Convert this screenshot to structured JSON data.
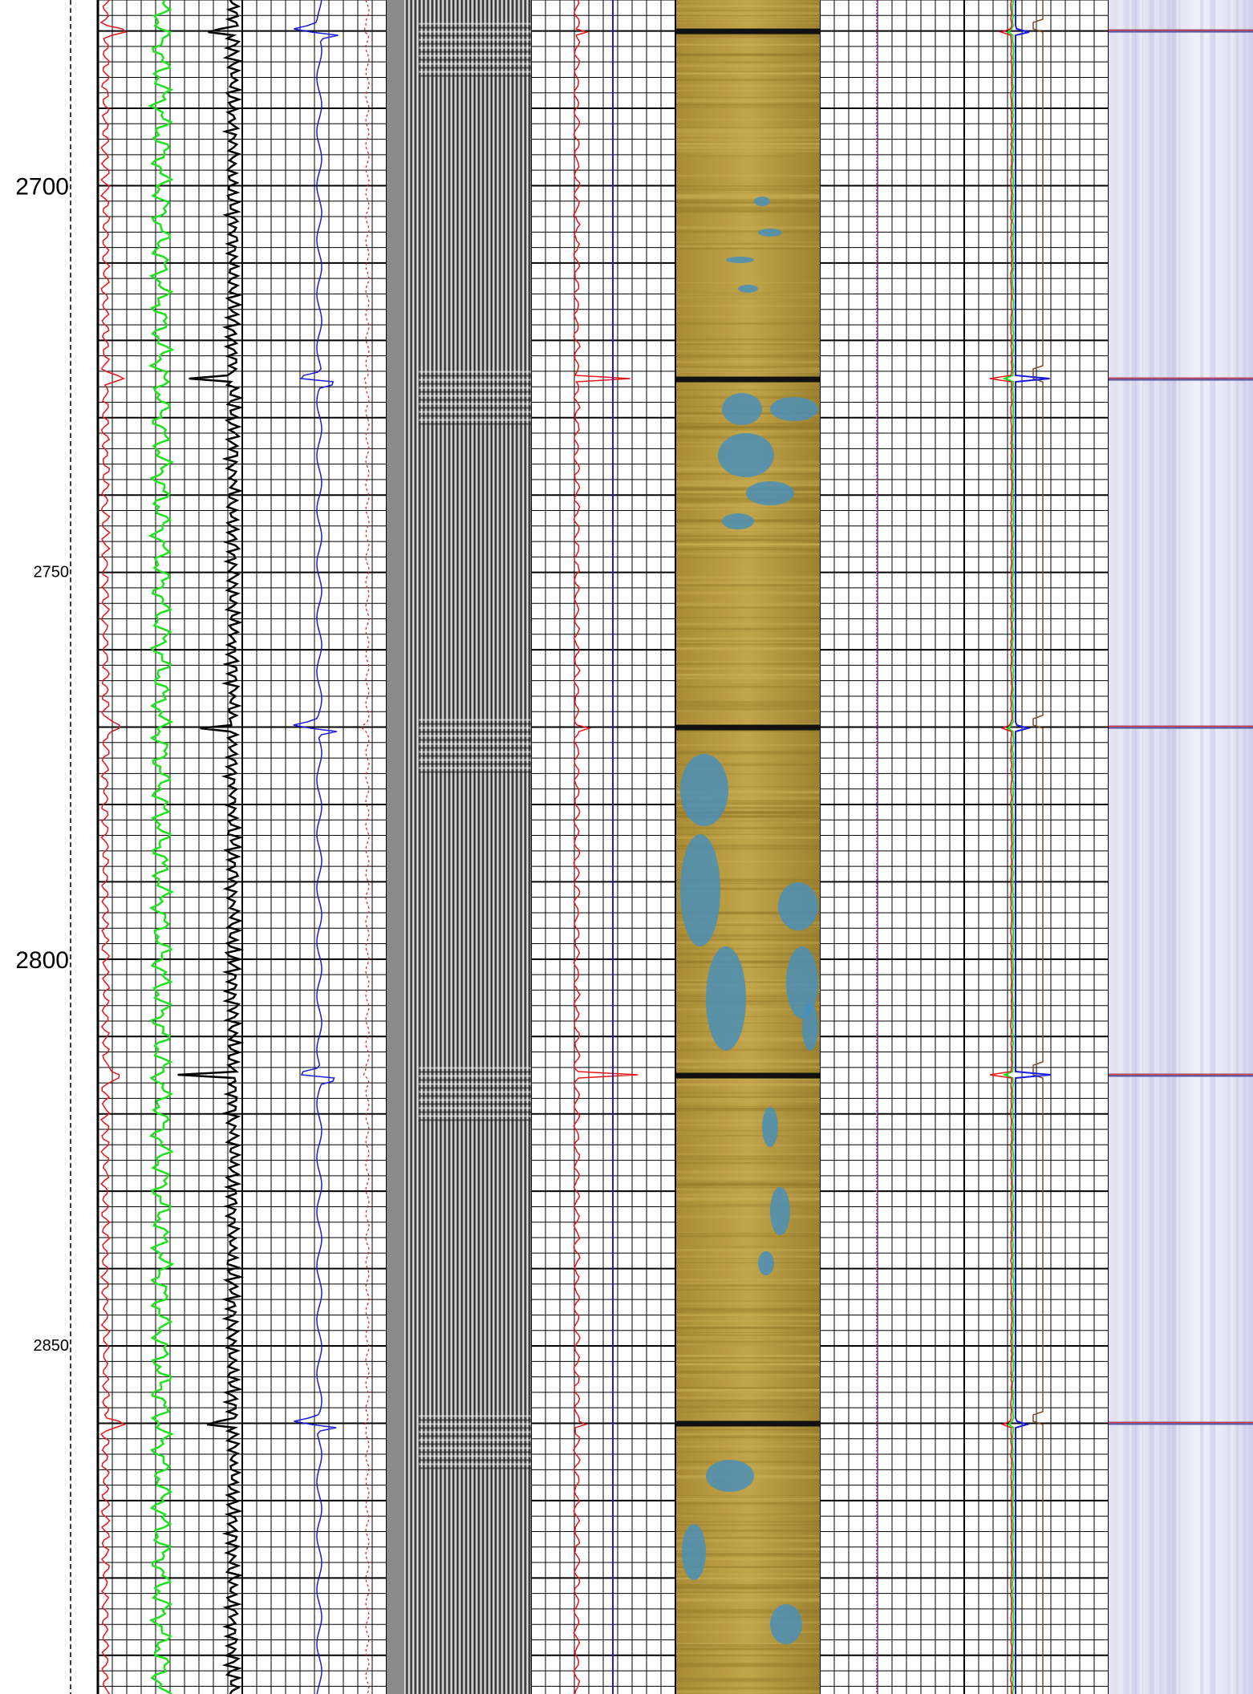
{
  "chart_data": {
    "type": "line",
    "title": "",
    "xlabel": "",
    "ylabel": "",
    "ylim": [
      2676,
      2895
    ],
    "depth_ticks": [
      {
        "value": 2700,
        "label": "2700",
        "size": "large"
      },
      {
        "value": 2750,
        "label": "2750",
        "size": "small"
      },
      {
        "value": 2800,
        "label": "2800",
        "size": "large"
      },
      {
        "value": 2850,
        "label": "2850",
        "size": "small"
      }
    ],
    "major_grid_step": 10,
    "minor_grid_step": 2,
    "grid": true,
    "joint_depths": [
      2680,
      2725,
      2770,
      2815,
      2860
    ],
    "tracks": [
      {
        "name": "track-1",
        "curves": [
          "red",
          "green"
        ]
      },
      {
        "name": "track-2",
        "curves": [
          "black"
        ]
      },
      {
        "name": "track-3",
        "curves": [
          "blue",
          "red-dotted"
        ]
      },
      {
        "name": "track-4-waveform",
        "curves": [
          "variable-density"
        ]
      },
      {
        "name": "track-5",
        "curves": [
          "red",
          "blue"
        ]
      },
      {
        "name": "track-6-image",
        "curves": [
          "acoustic-image"
        ]
      },
      {
        "name": "track-7",
        "curves": [
          "magenta-dotted"
        ]
      },
      {
        "name": "track-8",
        "curves": [
          "blue",
          "green",
          "red",
          "brown"
        ]
      },
      {
        "name": "track-9-image",
        "curves": [
          "lavender-image"
        ]
      }
    ],
    "colors": {
      "grid_major": "#000000",
      "grid_minor": "#000000",
      "red": "#e8141a",
      "green": "#1de21d",
      "black": "#000000",
      "blue": "#1a1ae0",
      "magenta": "#c832c8",
      "brown": "#7a4a2a",
      "image_tan": "#b59a3c",
      "image_blue": "#4a8fb8",
      "lavender": "#dcdcf0"
    }
  }
}
